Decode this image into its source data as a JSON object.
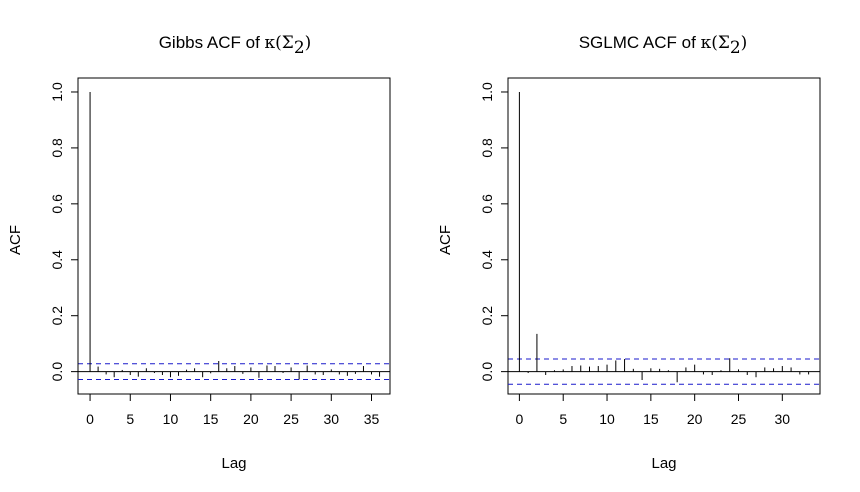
{
  "chart_data": [
    {
      "type": "bar",
      "title_prefix": "Gibbs ACF of ",
      "title_math": "κ(Σ",
      "title_sub": "2",
      "title_close": ")",
      "xlabel": "Lag",
      "ylabel": "ACF",
      "xlim": [
        -1.5,
        37.3
      ],
      "ylim": [
        -0.08,
        1.05
      ],
      "xticks": [
        0,
        5,
        10,
        15,
        20,
        25,
        30,
        35
      ],
      "yticks": [
        0.0,
        0.2,
        0.4,
        0.6,
        0.8,
        1.0
      ],
      "ytick_labels": [
        "0.0",
        "0.2",
        "0.4",
        "0.6",
        "0.8",
        "1.0"
      ],
      "confidence_band": 0.028,
      "lags": [
        0,
        1,
        2,
        3,
        4,
        5,
        6,
        7,
        8,
        9,
        10,
        11,
        12,
        13,
        14,
        15,
        16,
        17,
        18,
        19,
        20,
        21,
        22,
        23,
        24,
        25,
        26,
        27,
        28,
        29,
        30,
        31,
        32,
        33,
        34,
        35,
        36
      ],
      "values": [
        1.0,
        0.018,
        -0.01,
        -0.02,
        0.006,
        -0.012,
        -0.018,
        0.012,
        -0.005,
        -0.012,
        -0.02,
        -0.015,
        0.007,
        0.012,
        -0.02,
        -0.006,
        0.038,
        0.012,
        0.02,
        -0.008,
        0.015,
        -0.022,
        0.022,
        0.02,
        -0.005,
        0.015,
        -0.028,
        0.022,
        -0.01,
        -0.012,
        0.008,
        -0.01,
        -0.015,
        -0.008,
        0.02,
        -0.01,
        -0.018
      ]
    },
    {
      "type": "bar",
      "title_prefix": "SGLMC ACF of ",
      "title_math": "κ(Σ",
      "title_sub": "2",
      "title_close": ")",
      "xlabel": "Lag",
      "ylabel": "ACF",
      "xlim": [
        -1.3,
        34.3
      ],
      "ylim": [
        -0.08,
        1.05
      ],
      "xticks": [
        0,
        5,
        10,
        15,
        20,
        25,
        30
      ],
      "yticks": [
        0.0,
        0.2,
        0.4,
        0.6,
        0.8,
        1.0
      ],
      "ytick_labels": [
        "0.0",
        "0.2",
        "0.4",
        "0.6",
        "0.8",
        "1.0"
      ],
      "confidence_band": 0.045,
      "lags": [
        0,
        1,
        2,
        3,
        4,
        5,
        6,
        7,
        8,
        9,
        10,
        11,
        12,
        13,
        14,
        15,
        16,
        17,
        18,
        19,
        20,
        21,
        22,
        23,
        24,
        25,
        26,
        27,
        28,
        29,
        30,
        31,
        32,
        33
      ],
      "values": [
        1.0,
        -0.005,
        0.135,
        -0.012,
        0.005,
        0.008,
        0.02,
        0.022,
        0.018,
        0.02,
        0.025,
        0.04,
        0.045,
        0.01,
        -0.03,
        0.012,
        0.01,
        0.005,
        -0.038,
        0.015,
        0.025,
        -0.01,
        -0.012,
        0.005,
        0.048,
        0.008,
        -0.012,
        -0.02,
        0.015,
        0.012,
        0.02,
        0.015,
        -0.01,
        -0.01
      ]
    }
  ]
}
